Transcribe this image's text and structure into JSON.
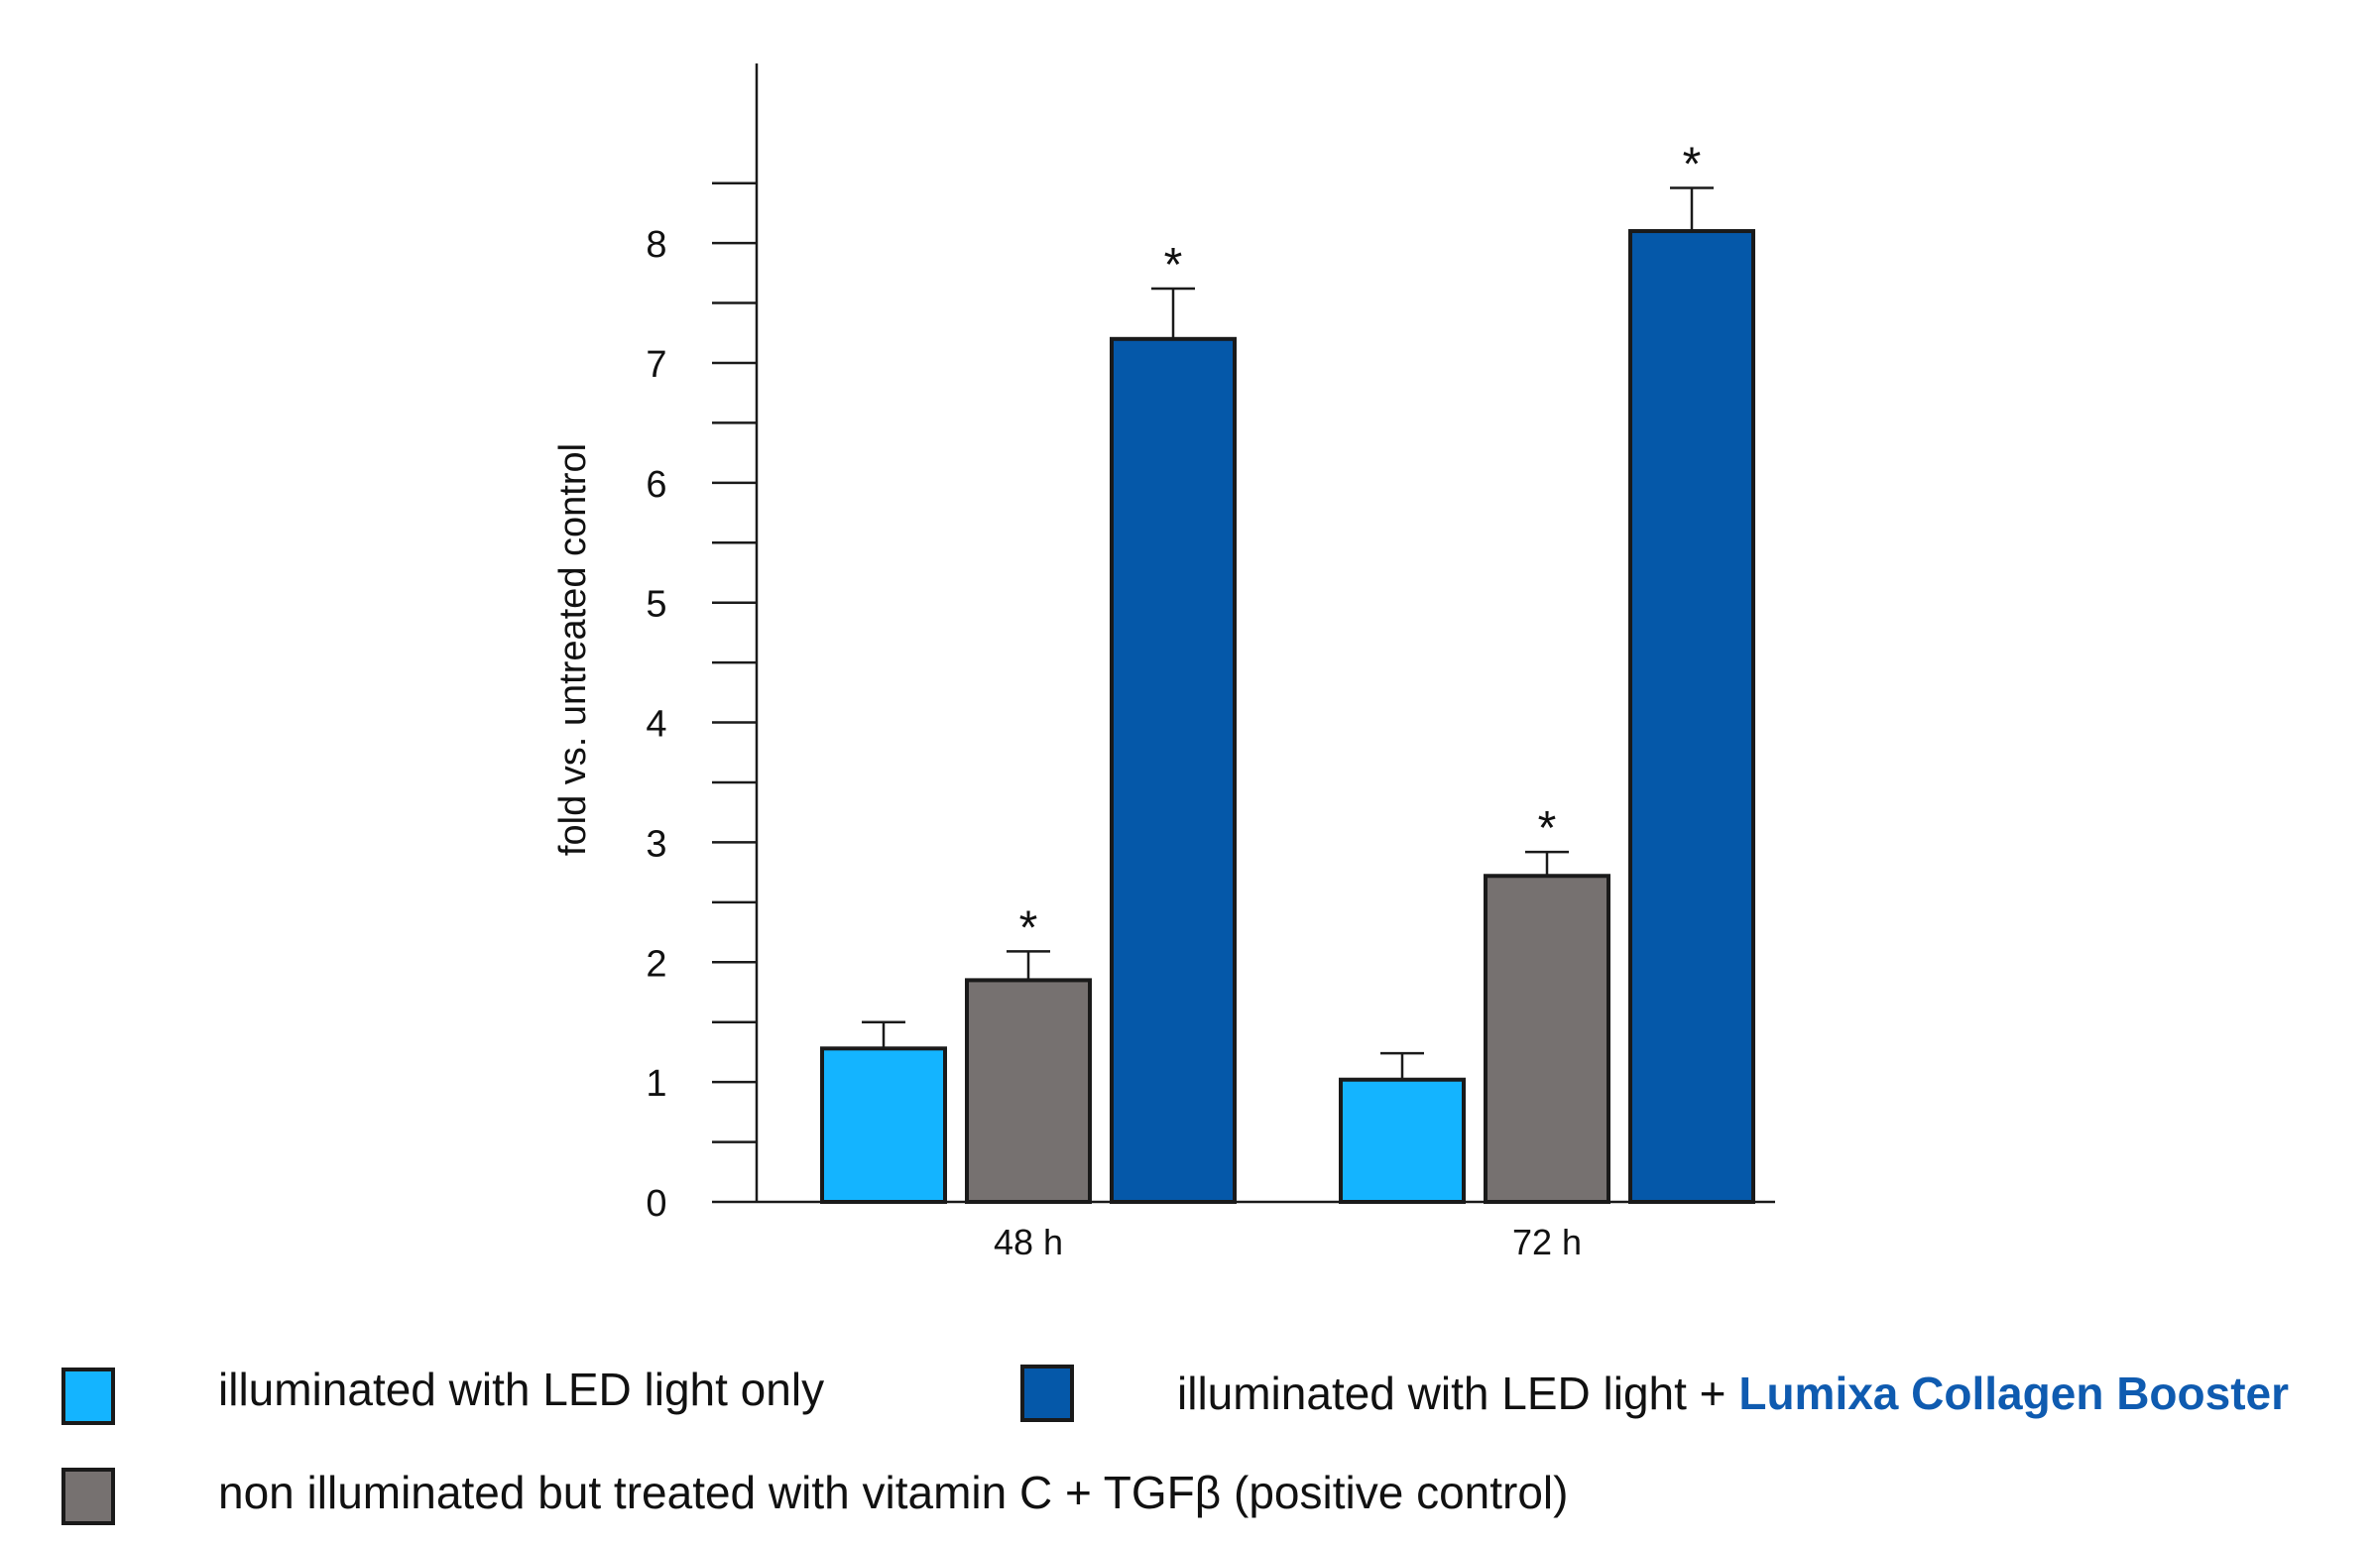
{
  "chart_data": {
    "type": "bar",
    "categories": [
      "48 h",
      "72 h"
    ],
    "series": [
      {
        "name": "illuminated with LED light only",
        "color": "#14b4ff",
        "values": [
          1.28,
          1.02
        ],
        "errors": [
          0.22,
          0.22
        ],
        "significant": [
          false,
          false
        ]
      },
      {
        "name": "non illuminated but treated with vitamin C + TGFβ (positive control)",
        "color": "#767170",
        "values": [
          1.85,
          2.72
        ],
        "errors": [
          0.24,
          0.2
        ],
        "significant": [
          true,
          true
        ]
      },
      {
        "name": "illuminated with LED light + Lumixa Collagen Booster",
        "color": "#0558a9",
        "values": [
          7.2,
          8.1
        ],
        "errors": [
          0.42,
          0.36
        ],
        "significant": [
          true,
          true
        ]
      }
    ],
    "ylabel": "fold vs. untreated control",
    "xlabel": "",
    "ylim": [
      0,
      9.3
    ],
    "yticks_labeled": [
      "0",
      "1",
      "2",
      "3",
      "4",
      "5",
      "6",
      "7",
      "8"
    ],
    "significance_marker": "*",
    "grid": false,
    "legend_position": "bottom"
  },
  "legend": {
    "item1": "illuminated with LED light only",
    "item2_prefix": "illuminated with LED light + ",
    "item2_brand": "Lumixa Collagen Booster",
    "item3": "non illuminated but treated with vitamin C + TGFβ (positive control)",
    "brand_color": "#0f5bb0"
  }
}
